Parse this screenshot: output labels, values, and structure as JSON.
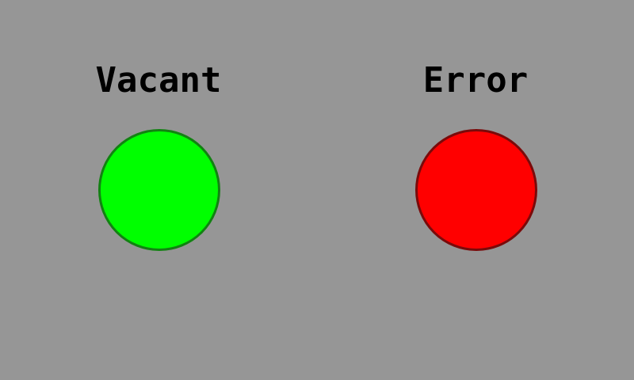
{
  "indicators": [
    {
      "label": "Vacant",
      "state": "vacant",
      "icon": "green-status-light-icon",
      "fill_color": "#00FF00",
      "border_color": "#128212"
    },
    {
      "label": "Error",
      "state": "error",
      "icon": "red-status-light-icon",
      "fill_color": "#FF0000",
      "border_color": "#7A0A0A"
    }
  ]
}
